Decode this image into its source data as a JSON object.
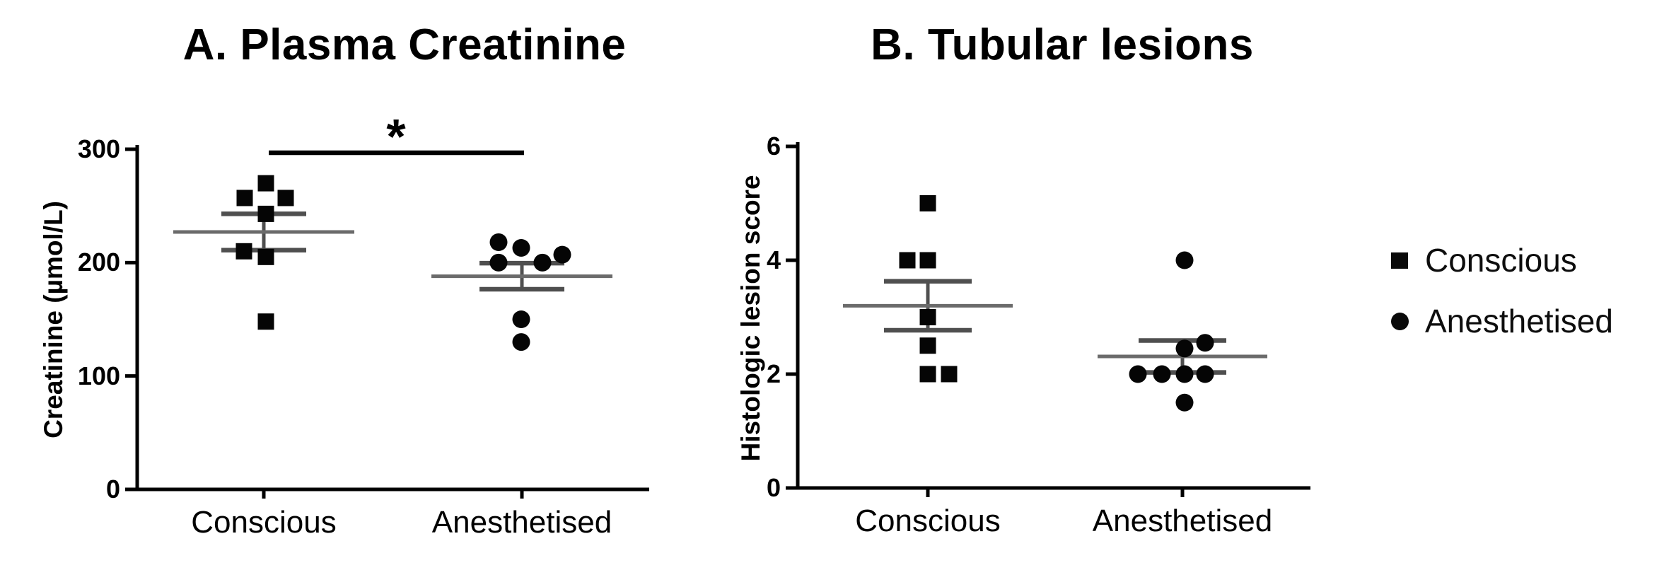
{
  "legend": {
    "items": [
      {
        "label": "Conscious",
        "marker": "square"
      },
      {
        "label": "Anesthetised",
        "marker": "circle"
      }
    ]
  },
  "chart_data": [
    {
      "type": "scatter",
      "panel": "A",
      "title": "A. Plasma Creatinine",
      "ylabel": "Creatinine (µmol/L)",
      "xlabel": "",
      "ylim": [
        0,
        300
      ],
      "yticks": [
        0,
        100,
        200,
        300
      ],
      "categories": [
        "Conscious",
        "Anesthetised"
      ],
      "grid": false,
      "legend_position": "right-of-figure",
      "series": [
        {
          "name": "Conscious",
          "marker": "square",
          "values": [
            270,
            257,
            257,
            243,
            210,
            205,
            148
          ],
          "mean": 227,
          "sem": 16
        },
        {
          "name": "Anesthetised",
          "marker": "circle",
          "values": [
            218,
            213,
            207,
            200,
            200,
            150,
            130
          ],
          "mean": 188,
          "sem": 11.5
        }
      ],
      "significance": {
        "symbol": "*",
        "between": [
          "Conscious",
          "Anesthetised"
        ]
      }
    },
    {
      "type": "scatter",
      "panel": "B",
      "title": "B. Tubular lesions",
      "ylabel": "Histologic lesion score",
      "xlabel": "",
      "ylim": [
        0,
        6
      ],
      "yticks": [
        0,
        2,
        4,
        6
      ],
      "categories": [
        "Conscious",
        "Anesthetised"
      ],
      "grid": false,
      "series": [
        {
          "name": "Conscious",
          "marker": "square",
          "values": [
            5,
            4,
            4,
            3,
            2.5,
            2,
            2
          ],
          "mean": 3.2,
          "sem": 0.43
        },
        {
          "name": "Anesthetised",
          "marker": "circle",
          "values": [
            4,
            2.45,
            2.55,
            2,
            2,
            2,
            2,
            1.5
          ],
          "mean": 2.31,
          "sem": 0.28
        }
      ]
    }
  ]
}
